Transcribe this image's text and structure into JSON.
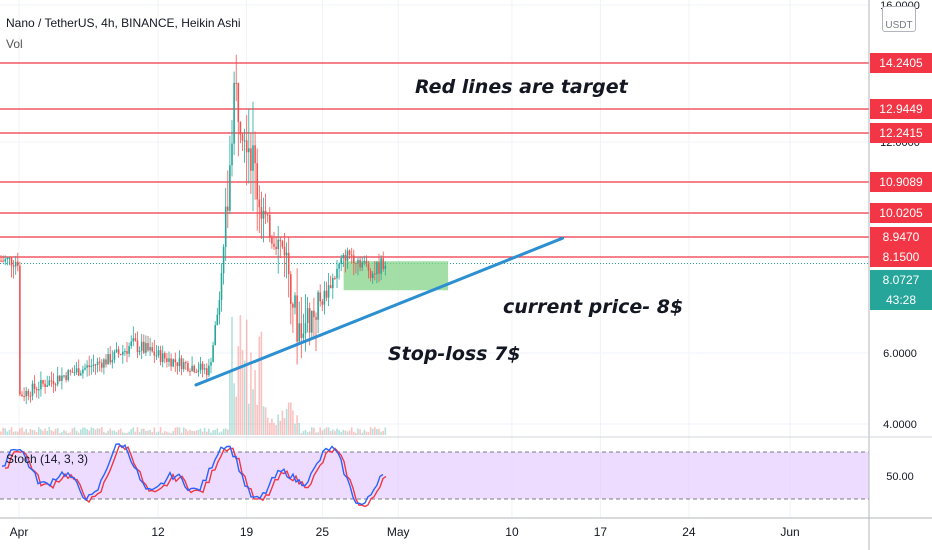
{
  "header": {
    "symbol_line": "Nano / TetherUS, 4h, BINANCE, Heikin Ashi",
    "volume_label": "Vol"
  },
  "price_axis": {
    "unit_top": "",
    "unit_bottom": "USDT",
    "ticks": [
      "16.0000",
      "12.0000",
      "6.0000",
      "4.0000"
    ]
  },
  "target_levels": [
    {
      "label": "14.2405",
      "value": 14.2405
    },
    {
      "label": "12.9449",
      "value": 12.9449
    },
    {
      "label": "12.2415",
      "value": 12.2415
    },
    {
      "label": "10.9089",
      "value": 10.9089
    },
    {
      "label": "10.0205",
      "value": 10.0205
    },
    {
      "label": "8.9470",
      "value": 8.947
    },
    {
      "label": "8.1500",
      "value": 8.15
    }
  ],
  "current_price": {
    "label": "8.0727",
    "countdown": "43:28",
    "value": 8.0727
  },
  "annotations": {
    "targets_note": "Red lines are target",
    "current_note": "current price- 8$",
    "stop_note": "Stop-loss  7$"
  },
  "oscillator": {
    "label": "Stoch (14, 3, 3)",
    "tick_label": "50.00",
    "upper": 80,
    "lower": 20
  },
  "time_axis": {
    "labels": [
      "Apr",
      "12",
      "19",
      "25",
      "May",
      "10",
      "17",
      "24",
      "Jun"
    ]
  },
  "colors": {
    "up": "#26a69a",
    "down": "#ef5350",
    "target": "#f23645",
    "trend": "#2b8fd0",
    "zone": "#86d38a",
    "stoch_k": "#2962ff",
    "stoch_d": "#f23645",
    "band": "#e1c4ff"
  },
  "chart_data": {
    "type": "candlestick",
    "title": "Nano / TetherUS, 4h, BINANCE, Heikin Ashi",
    "x_range": [
      "Apr",
      "Jun"
    ],
    "y_axis_ticks": [
      4.0,
      6.0,
      12.0,
      16.0
    ],
    "horizontal_levels": [
      14.2405,
      12.9449,
      12.2415,
      10.9089,
      10.0205,
      8.947,
      8.15
    ],
    "current_price": 8.0727,
    "trendline": {
      "from": {
        "date": "Apr 15",
        "price": 5.1
      },
      "to": {
        "date": "May 14",
        "price": 8.9
      }
    },
    "target_zone": {
      "from": "Apr 27",
      "to": "May 4",
      "price_low": 7.45,
      "price_high": 8.1
    },
    "price_path": [
      {
        "x": "Apr 1",
        "price": 4.8
      },
      {
        "x": "Apr 4",
        "price": 5.3
      },
      {
        "x": "Apr 8",
        "price": 5.8
      },
      {
        "x": "Apr 10",
        "price": 6.2
      },
      {
        "x": "Apr 13",
        "price": 5.8
      },
      {
        "x": "Apr 16",
        "price": 5.5
      },
      {
        "x": "Apr 17",
        "price": 7.5
      },
      {
        "x": "Apr 18",
        "price": 13.5
      },
      {
        "x": "Apr 19",
        "price": 12.5
      },
      {
        "x": "Apr 20",
        "price": 10.5
      },
      {
        "x": "Apr 21",
        "price": 9.0
      },
      {
        "x": "Apr 22",
        "price": 8.5
      },
      {
        "x": "Apr 23",
        "price": 6.6
      },
      {
        "x": "Apr 24",
        "price": 6.8
      },
      {
        "x": "Apr 25",
        "price": 7.2
      },
      {
        "x": "Apr 27",
        "price": 8.3
      },
      {
        "x": "Apr 29",
        "price": 7.8
      },
      {
        "x": "Apr 30",
        "price": 8.07
      }
    ],
    "stochastic": {
      "upper": 80,
      "lower": 20,
      "label": "Stoch (14, 3, 3)"
    }
  }
}
